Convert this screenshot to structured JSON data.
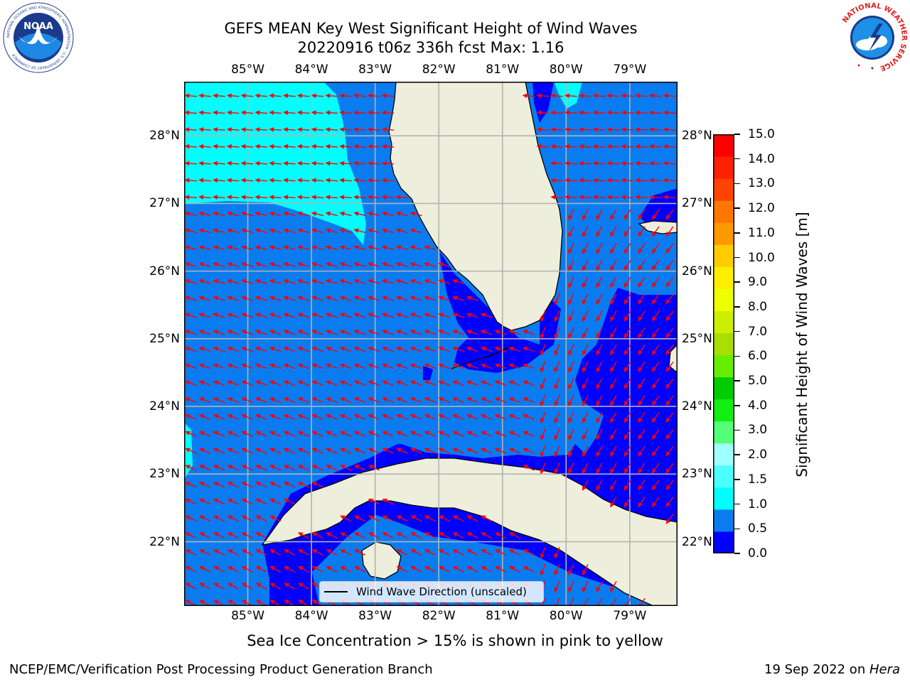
{
  "title": {
    "line1": "GEFS MEAN Key West Significant Height of Wind Waves",
    "line2": "20220916 t06z 336h fcst   Max: 1.16"
  },
  "logos": {
    "left": {
      "icon": "noaa-logo-icon",
      "text": "NOAA",
      "ring_text": "NATIONAL OCEANIC AND ATMOSPHERIC ADMINISTRATION · U.S. DEPARTMENT OF COMMERCE"
    },
    "right": {
      "icon": "nws-logo-icon",
      "ring_text": "NATIONAL WEATHER SERVICE"
    }
  },
  "axes": {
    "lon_labels": [
      "85°W",
      "84°W",
      "83°W",
      "82°W",
      "81°W",
      "80°W",
      "79°W"
    ],
    "lat_labels": [
      "28°N",
      "27°N",
      "26°N",
      "25°N",
      "24°N",
      "23°N",
      "22°N"
    ],
    "lon_range": [
      -86.0,
      -78.25
    ],
    "lat_range": [
      21.05,
      28.8
    ]
  },
  "colorbar": {
    "label": "Significant Height of Wind Waves [m]",
    "ticks": [
      "15.0",
      "14.0",
      "13.0",
      "12.0",
      "11.0",
      "10.0",
      "9.0",
      "8.0",
      "7.0",
      "6.0",
      "5.0",
      "4.0",
      "3.0",
      "2.0",
      "1.5",
      "1.0",
      "0.5",
      "0.0"
    ],
    "colors_bottom_to_top": [
      "#0000ff",
      "#0a7cf0",
      "#00ffff",
      "#4cffff",
      "#a0ffff",
      "#55ff77",
      "#11ee11",
      "#00cc00",
      "#66ee00",
      "#aadd00",
      "#ccee00",
      "#eeff00",
      "#ffee00",
      "#ffcc00",
      "#ff9900",
      "#ff7700",
      "#ff4400",
      "#ff2200",
      "#ff0000"
    ]
  },
  "legend": {
    "label": "Wind Wave Direction (unscaled)"
  },
  "note": "Sea Ice Concentration > 15% is shown in pink to yellow",
  "footer": {
    "left": "NCEP/EMC/Verification Post Processing Product Generation Branch",
    "right_prefix": "19 Sep 2022 on ",
    "right_host": "Hera"
  },
  "colors": {
    "land": "#eeeedc",
    "ocean_mid": "#0a7cf0",
    "ocean_low": "#0000ff",
    "ocean_high": "#00ffff",
    "arrows": "#ff0000",
    "grid": "#b3b3b3"
  }
}
